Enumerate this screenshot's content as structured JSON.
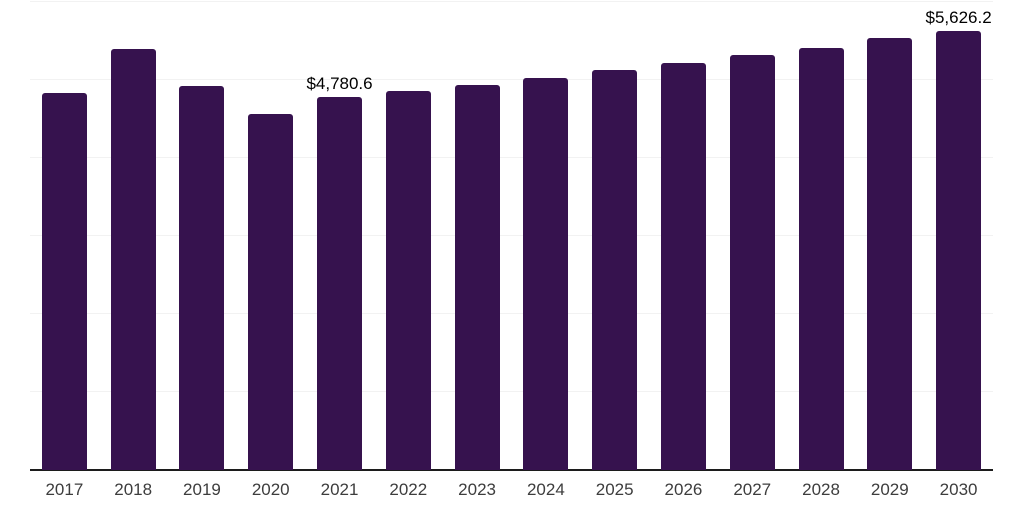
{
  "chart_data": {
    "type": "bar",
    "title": "",
    "xlabel": "",
    "ylabel": "",
    "categories": [
      "2017",
      "2018",
      "2019",
      "2020",
      "2021",
      "2022",
      "2023",
      "2024",
      "2025",
      "2026",
      "2027",
      "2028",
      "2029",
      "2030"
    ],
    "values": [
      4830,
      5400,
      4925,
      4560,
      4780.6,
      4860,
      4935,
      5025,
      5125,
      5220,
      5315,
      5410,
      5535,
      5626.2
    ],
    "ylim": [
      0,
      6000
    ],
    "gridline_interval": 1000,
    "grid": true,
    "legend": "none",
    "annotations": [
      {
        "category": "2021",
        "text": "$4,780.6"
      },
      {
        "category": "2030",
        "text": "$5,626.2"
      }
    ],
    "colors": {
      "bar": "#36124E",
      "axis_line": "#1c1c1c",
      "gridline": "#f2f2f2",
      "tick_label": "#3d3d3d",
      "data_label": "#000000",
      "background": "#ffffff"
    }
  }
}
